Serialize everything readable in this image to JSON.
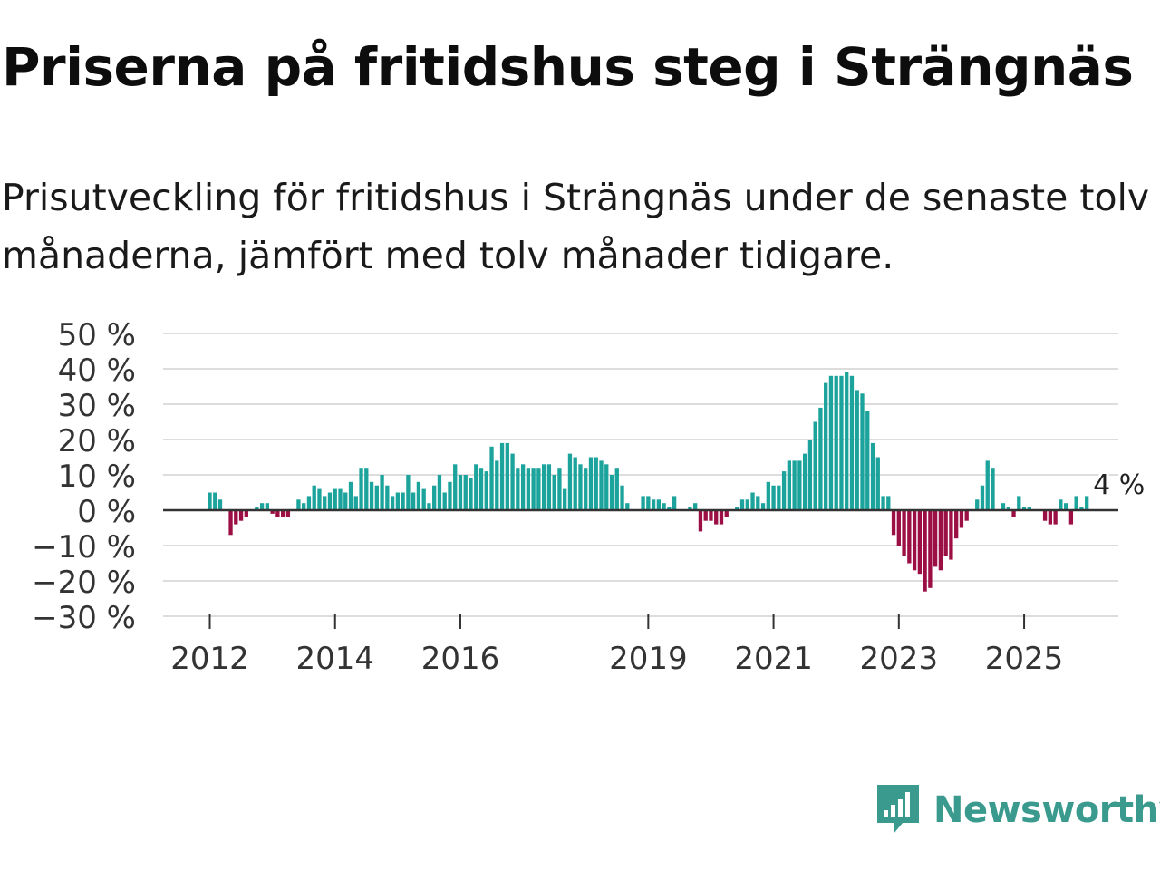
{
  "title": "Priserna på fritidshus steg i Strängnäs",
  "subtitle": "Prisutveckling för fritidshus i Strängnäs under de senaste tolv månaderna, jämfört med tolv månader tidigare.",
  "brand": {
    "name": "Newsworthy",
    "logo_icon": "newsworthy-bar-chart-icon"
  },
  "colors": {
    "positive": "#1ba39c",
    "negative": "#9b0f44",
    "grid": "#dddddd",
    "zero": "#333333",
    "text": "#333333"
  },
  "chart_data": {
    "type": "bar",
    "title": "Priserna på fritidshus steg i Strängnäs",
    "xlabel": "",
    "ylabel": "",
    "ylim": [
      -30,
      50
    ],
    "yticks": [
      50,
      40,
      30,
      20,
      10,
      0,
      -10,
      -20,
      -30
    ],
    "ytick_labels": [
      "50 %",
      "40 %",
      "30 %",
      "20 %",
      "10 %",
      "0 %",
      "−10 %",
      "−20 %",
      "−30 %"
    ],
    "xticks": [
      {
        "label": "2012",
        "index": 0
      },
      {
        "label": "2014",
        "index": 24
      },
      {
        "label": "2016",
        "index": 48
      },
      {
        "label": "2019",
        "index": 84
      },
      {
        "label": "2021",
        "index": 108
      },
      {
        "label": "2023",
        "index": 132
      },
      {
        "label": "2025",
        "index": 156
      }
    ],
    "start": "2011-11",
    "interval": "month",
    "values": [
      5,
      5,
      3,
      null,
      -7,
      -4,
      -3,
      -2,
      null,
      1,
      2,
      2,
      -1,
      -2,
      -2,
      -2,
      null,
      3,
      2,
      4,
      7,
      6,
      4,
      5,
      6,
      6,
      5,
      8,
      4,
      12,
      12,
      8,
      7,
      10,
      7,
      4,
      5,
      5,
      10,
      5,
      8,
      6,
      2,
      7,
      10,
      5,
      8,
      13,
      10,
      10,
      9,
      13,
      12,
      11,
      18,
      14,
      19,
      19,
      16,
      12,
      13,
      12,
      12,
      12,
      13,
      13,
      10,
      12,
      6,
      16,
      15,
      13,
      12,
      15,
      15,
      14,
      13,
      10,
      12,
      7,
      2,
      null,
      null,
      4,
      4,
      3,
      3,
      2,
      1,
      4,
      null,
      null,
      1,
      2,
      -6,
      -3,
      -3,
      -4,
      -4,
      -2,
      null,
      1,
      3,
      3,
      5,
      4,
      2,
      8,
      7,
      7,
      11,
      14,
      14,
      14,
      16,
      20,
      25,
      29,
      36,
      38,
      38,
      38,
      39,
      38,
      34,
      33,
      28,
      19,
      15,
      4,
      4,
      -7,
      -10,
      -13,
      -15,
      -17,
      -18,
      -23,
      -22,
      -16,
      -17,
      -13,
      -14,
      -8,
      -5,
      -3,
      null,
      3,
      7,
      14,
      12,
      null,
      2,
      1,
      -2,
      4,
      1,
      1,
      null,
      null,
      -3,
      -4,
      -4,
      3,
      2,
      -4,
      4,
      1,
      4
    ],
    "annotations": [
      {
        "text": "4 %",
        "index": 174
      }
    ]
  }
}
